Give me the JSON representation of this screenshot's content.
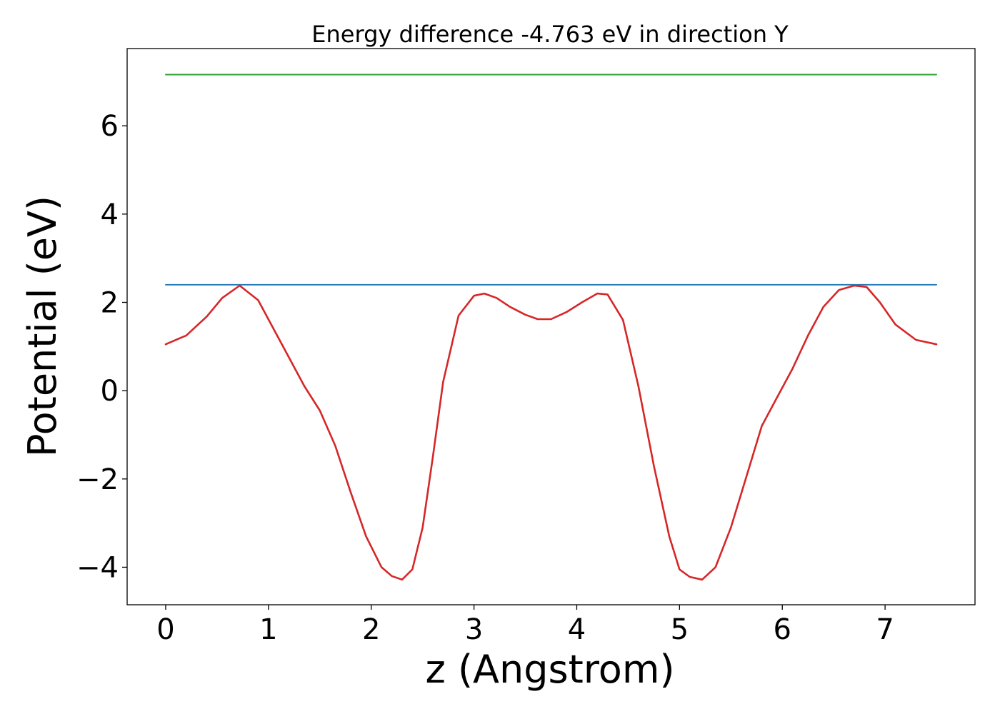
{
  "chart_data": {
    "type": "line",
    "title": "Energy difference -4.763 eV in direction Y",
    "xlabel": "z (Angstrom)",
    "ylabel": "Potential (eV)",
    "xlim": [
      -0.375,
      7.875
    ],
    "ylim": [
      -4.85,
      7.75
    ],
    "xticks": [
      0,
      1,
      2,
      3,
      4,
      5,
      6,
      7
    ],
    "yticks": [
      -4,
      -2,
      0,
      2,
      4,
      6
    ],
    "xtick_labels": [
      "0",
      "1",
      "2",
      "3",
      "4",
      "5",
      "6",
      "7"
    ],
    "ytick_labels": [
      "−4",
      "−2",
      "0",
      "2",
      "4",
      "6"
    ],
    "grid": false,
    "series": [
      {
        "color": "#2ca02c",
        "x": [
          0,
          7.5
        ],
        "y": [
          7.16,
          7.16
        ]
      },
      {
        "color": "#1f77b4",
        "x": [
          0,
          7.5
        ],
        "y": [
          2.4,
          2.4
        ]
      },
      {
        "color": "#d62728",
        "x": [
          0,
          0.2,
          0.4,
          0.55,
          0.72,
          0.9,
          1.05,
          1.2,
          1.35,
          1.5,
          1.65,
          1.8,
          1.95,
          2.1,
          2.2,
          2.3,
          2.4,
          2.5,
          2.6,
          2.7,
          2.85,
          3.0,
          3.1,
          3.22,
          3.35,
          3.5,
          3.62,
          3.75,
          3.9,
          4.05,
          4.2,
          4.3,
          4.45,
          4.6,
          4.75,
          4.9,
          5.0,
          5.1,
          5.22,
          5.35,
          5.5,
          5.65,
          5.8,
          5.95,
          6.1,
          6.25,
          6.4,
          6.55,
          6.7,
          6.82,
          6.95,
          7.1,
          7.3,
          7.5
        ],
        "y": [
          1.05,
          1.25,
          1.68,
          2.1,
          2.38,
          2.05,
          1.4,
          0.75,
          0.1,
          -0.45,
          -1.25,
          -2.3,
          -3.3,
          -4.0,
          -4.2,
          -4.28,
          -4.05,
          -3.1,
          -1.5,
          0.2,
          1.7,
          2.15,
          2.2,
          2.1,
          1.9,
          1.72,
          1.62,
          1.62,
          1.78,
          2.0,
          2.2,
          2.18,
          1.6,
          0.1,
          -1.7,
          -3.3,
          -4.05,
          -4.22,
          -4.28,
          -4.0,
          -3.1,
          -1.95,
          -0.8,
          -0.15,
          0.5,
          1.25,
          1.9,
          2.28,
          2.38,
          2.35,
          2.0,
          1.5,
          1.15,
          1.05
        ]
      }
    ]
  }
}
